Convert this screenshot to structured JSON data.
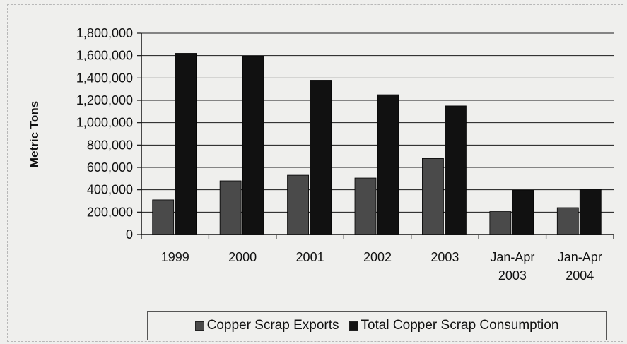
{
  "chart_data": {
    "type": "bar",
    "title": "",
    "xlabel": "",
    "ylabel": "Metric Tons",
    "ylim": [
      0,
      1800000
    ],
    "yticks": [
      "1,800,000",
      "1,600,000",
      "1,400,000",
      "1,200,000",
      "1,000,000",
      "800,000",
      "600,000",
      "400,000",
      "200,000",
      "0"
    ],
    "categories": [
      [
        "1999"
      ],
      [
        "2000"
      ],
      [
        "2001"
      ],
      [
        "2002"
      ],
      [
        "2003"
      ],
      [
        "Jan-Apr",
        "2003"
      ],
      [
        "Jan-Apr",
        "2004"
      ]
    ],
    "series": [
      {
        "name": "Copper Scrap Exports",
        "color": "#4a4a4a",
        "values": [
          310000,
          480000,
          530000,
          505000,
          680000,
          205000,
          240000
        ]
      },
      {
        "name": "Total Copper Scrap Consumption",
        "color": "#111111",
        "values": [
          1620000,
          1595000,
          1380000,
          1250000,
          1150000,
          395000,
          405000
        ]
      }
    ],
    "grid": true,
    "legend_position": "bottom"
  }
}
